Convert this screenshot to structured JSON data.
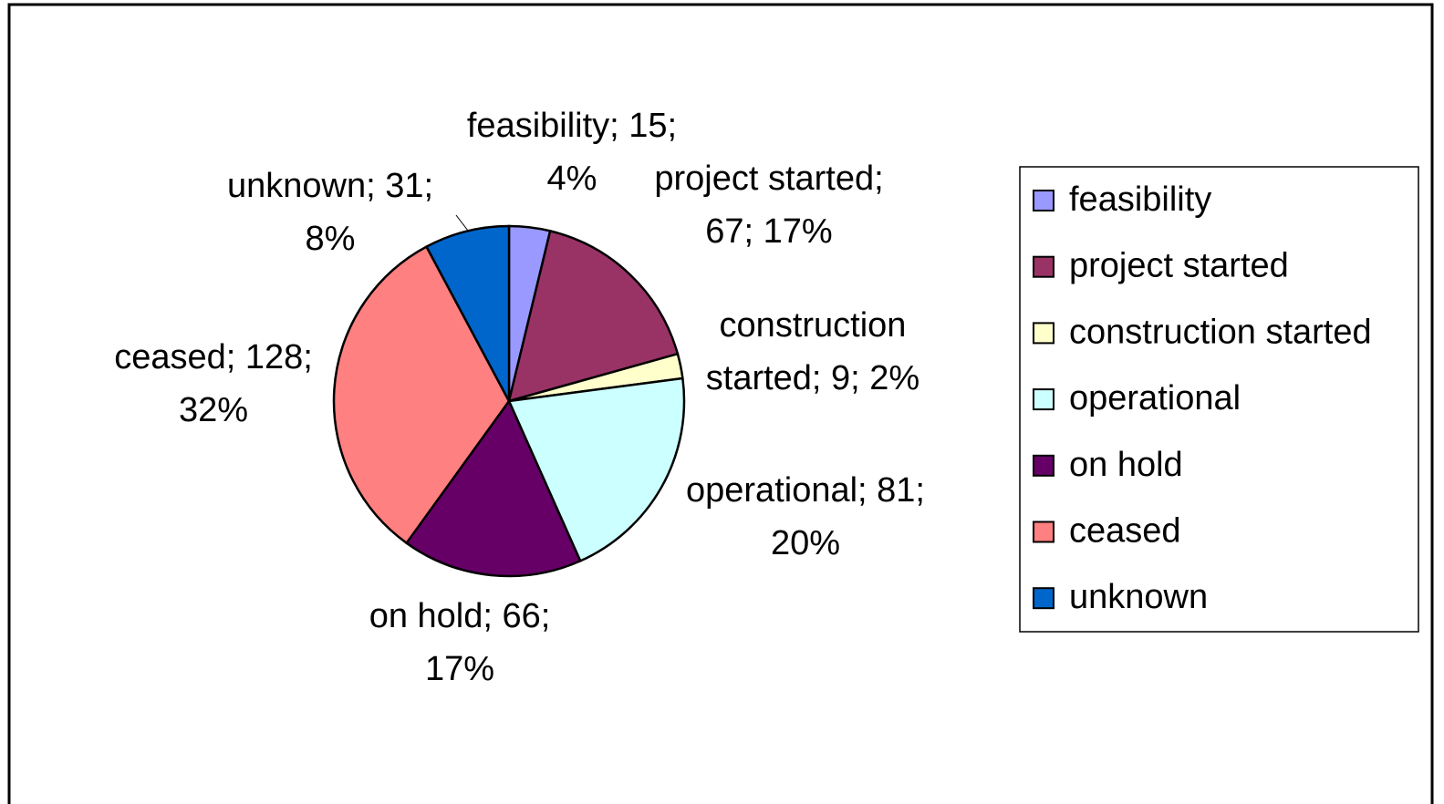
{
  "chart_data": {
    "type": "pie",
    "categories": [
      "feasibility",
      "project started",
      "construction started",
      "operational",
      "on hold",
      "ceased",
      "unknown"
    ],
    "values": [
      15,
      67,
      9,
      81,
      66,
      128,
      31
    ],
    "value_labels": [
      "feasibility; 15; 4%",
      "project started; 67; 17%",
      "construction started; 9; 2%",
      "operational; 81; 20%",
      "on hold; 66; 17%",
      "ceased; 128; 32%",
      "unknown; 31; 8%"
    ],
    "colors": [
      "#9999ff",
      "#993366",
      "#ffffcc",
      "#ccffff",
      "#660066",
      "#ff8080",
      "#0066cc"
    ],
    "legend": "right"
  }
}
